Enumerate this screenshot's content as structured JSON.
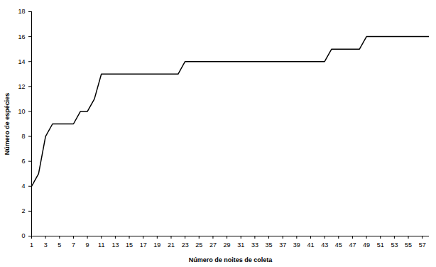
{
  "chart_data": {
    "type": "line",
    "x_label": "Número de noites de coleta",
    "y_label": "Número de espécies",
    "x": [
      1,
      2,
      3,
      4,
      5,
      6,
      7,
      8,
      9,
      10,
      11,
      12,
      13,
      14,
      15,
      16,
      17,
      18,
      19,
      20,
      21,
      22,
      23,
      24,
      25,
      26,
      27,
      28,
      29,
      30,
      31,
      32,
      33,
      34,
      35,
      36,
      37,
      38,
      39,
      40,
      41,
      42,
      43,
      44,
      45,
      46,
      47,
      48,
      49,
      50,
      51,
      52,
      53,
      54,
      55,
      56,
      57,
      58
    ],
    "values": [
      4,
      5,
      8,
      9,
      9,
      9,
      9,
      10,
      10,
      11,
      13,
      13,
      13,
      13,
      13,
      13,
      13,
      13,
      13,
      13,
      13,
      13,
      14,
      14,
      14,
      14,
      14,
      14,
      14,
      14,
      14,
      14,
      14,
      14,
      14,
      14,
      14,
      14,
      14,
      14,
      14,
      14,
      14,
      15,
      15,
      15,
      15,
      15,
      16,
      16,
      16,
      16,
      16,
      16,
      16,
      16,
      16,
      16
    ],
    "color": "#000000",
    "xlim": [
      1,
      58
    ],
    "xticks": [
      1,
      3,
      5,
      7,
      9,
      11,
      13,
      15,
      17,
      19,
      21,
      23,
      25,
      27,
      29,
      31,
      33,
      35,
      37,
      39,
      41,
      43,
      45,
      47,
      49,
      51,
      53,
      55,
      57
    ],
    "ylim": [
      0,
      18
    ],
    "yticks": [
      0,
      2,
      4,
      6,
      8,
      10,
      12,
      14,
      16,
      18
    ],
    "grid": false
  }
}
